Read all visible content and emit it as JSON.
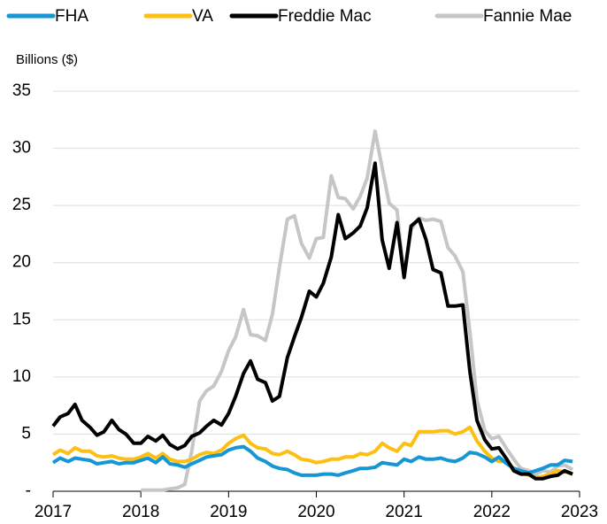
{
  "chart_data": {
    "type": "line",
    "y_axis_label": "Billions ($)",
    "x": [
      2017,
      2017.08,
      2017.17,
      2017.25,
      2017.33,
      2017.42,
      2017.5,
      2017.58,
      2017.67,
      2017.75,
      2017.83,
      2017.92,
      2018,
      2018.08,
      2018.17,
      2018.25,
      2018.33,
      2018.42,
      2018.5,
      2018.58,
      2018.67,
      2018.75,
      2018.83,
      2018.92,
      2019,
      2019.08,
      2019.17,
      2019.25,
      2019.33,
      2019.42,
      2019.5,
      2019.58,
      2019.67,
      2019.75,
      2019.83,
      2019.92,
      2020,
      2020.08,
      2020.17,
      2020.25,
      2020.33,
      2020.42,
      2020.5,
      2020.58,
      2020.67,
      2020.75,
      2020.83,
      2020.92,
      2021,
      2021.08,
      2021.17,
      2021.25,
      2021.33,
      2021.42,
      2021.5,
      2021.58,
      2021.67,
      2021.75,
      2021.83,
      2021.92,
      2022,
      2022.08,
      2022.17,
      2022.25,
      2022.33,
      2022.42,
      2022.5,
      2022.58,
      2022.67,
      2022.75,
      2022.83,
      2022.92
    ],
    "series": [
      {
        "name": "FHA",
        "color": "#1696d2",
        "values": [
          2.5,
          2.9,
          2.6,
          2.9,
          2.8,
          2.7,
          2.4,
          2.5,
          2.6,
          2.4,
          2.5,
          2.5,
          2.7,
          2.9,
          2.5,
          3.0,
          2.4,
          2.3,
          2.1,
          2.4,
          2.7,
          3.0,
          3.1,
          3.2,
          3.6,
          3.8,
          3.9,
          3.5,
          2.9,
          2.6,
          2.2,
          2.0,
          1.9,
          1.6,
          1.4,
          1.4,
          1.4,
          1.5,
          1.5,
          1.4,
          1.6,
          1.8,
          2.0,
          2.0,
          2.1,
          2.5,
          2.4,
          2.3,
          2.8,
          2.6,
          3.0,
          2.8,
          2.8,
          2.9,
          2.7,
          2.6,
          2.9,
          3.4,
          3.3,
          3.0,
          2.6,
          3.0,
          2.4,
          2.0,
          1.8,
          1.6,
          1.8,
          2.0,
          2.3,
          2.3,
          2.7,
          2.6
        ]
      },
      {
        "name": "VA",
        "color": "#fdbf11",
        "values": [
          3.2,
          3.6,
          3.3,
          3.8,
          3.5,
          3.5,
          3.1,
          3.0,
          3.1,
          2.9,
          2.8,
          2.8,
          3.0,
          3.3,
          2.9,
          3.3,
          2.8,
          2.6,
          2.6,
          2.8,
          3.2,
          3.4,
          3.3,
          3.6,
          4.2,
          4.6,
          4.9,
          4.2,
          3.8,
          3.7,
          3.3,
          3.2,
          3.5,
          3.2,
          2.8,
          2.7,
          2.5,
          2.6,
          2.8,
          2.8,
          3.0,
          3.0,
          3.3,
          3.2,
          3.5,
          4.2,
          3.8,
          3.5,
          4.2,
          4.0,
          5.2,
          5.2,
          5.2,
          5.3,
          5.3,
          5.0,
          5.2,
          5.6,
          4.4,
          3.5,
          2.9,
          2.6,
          2.6,
          2.0,
          1.7,
          1.4,
          1.2,
          1.3,
          1.5,
          1.8,
          1.7,
          1.5
        ]
      },
      {
        "name": "Freddie Mac",
        "color": "#000000",
        "values": [
          5.7,
          6.5,
          6.8,
          7.6,
          6.2,
          5.6,
          4.9,
          5.2,
          6.2,
          5.4,
          5.0,
          4.2,
          4.2,
          4.8,
          4.4,
          4.9,
          4.1,
          3.7,
          4.0,
          4.8,
          5.1,
          5.7,
          6.2,
          5.8,
          6.8,
          8.3,
          10.3,
          11.4,
          9.8,
          9.5,
          7.9,
          8.3,
          11.7,
          13.5,
          15.2,
          17.5,
          17.0,
          18.2,
          20.5,
          24.2,
          22.1,
          22.6,
          23.2,
          24.8,
          28.7,
          22.0,
          19.5,
          23.5,
          18.7,
          23.2,
          23.8,
          22.0,
          19.4,
          19.1,
          16.2,
          16.2,
          16.3,
          10.5,
          6.2,
          4.5,
          3.7,
          3.8,
          2.8,
          1.8,
          1.5,
          1.5,
          1.1,
          1.1,
          1.3,
          1.4,
          1.8,
          1.5
        ]
      },
      {
        "name": "Fannie Mae",
        "color": "#c6c6c6",
        "values": [
          null,
          null,
          null,
          null,
          null,
          null,
          null,
          null,
          null,
          null,
          null,
          null,
          0.1,
          0.1,
          0.1,
          0.1,
          0.2,
          0.3,
          0.6,
          3.5,
          7.9,
          8.8,
          9.2,
          10.5,
          12.3,
          13.5,
          15.9,
          13.7,
          13.6,
          13.2,
          15.5,
          19.6,
          23.8,
          24.1,
          21.7,
          20.4,
          22.1,
          22.2,
          27.6,
          25.7,
          25.6,
          24.7,
          25.8,
          27.4,
          31.5,
          28.3,
          25.2,
          24.6,
          18.7,
          22.9,
          23.9,
          23.7,
          23.8,
          23.6,
          21.3,
          20.6,
          19.2,
          14.0,
          8.0,
          5.3,
          4.6,
          4.8,
          3.7,
          2.8,
          2.0,
          1.8,
          1.5,
          1.8,
          1.7,
          2.2,
          2.3,
          1.9
        ]
      }
    ],
    "xlim": [
      2017,
      2023
    ],
    "xticks": [
      2017,
      2018,
      2019,
      2020,
      2021,
      2022,
      2023
    ],
    "ylim": [
      0,
      35
    ],
    "yticks": [
      {
        "value": 0,
        "label": "-"
      },
      5,
      10,
      15,
      20,
      25,
      30,
      35
    ],
    "grid": true
  }
}
